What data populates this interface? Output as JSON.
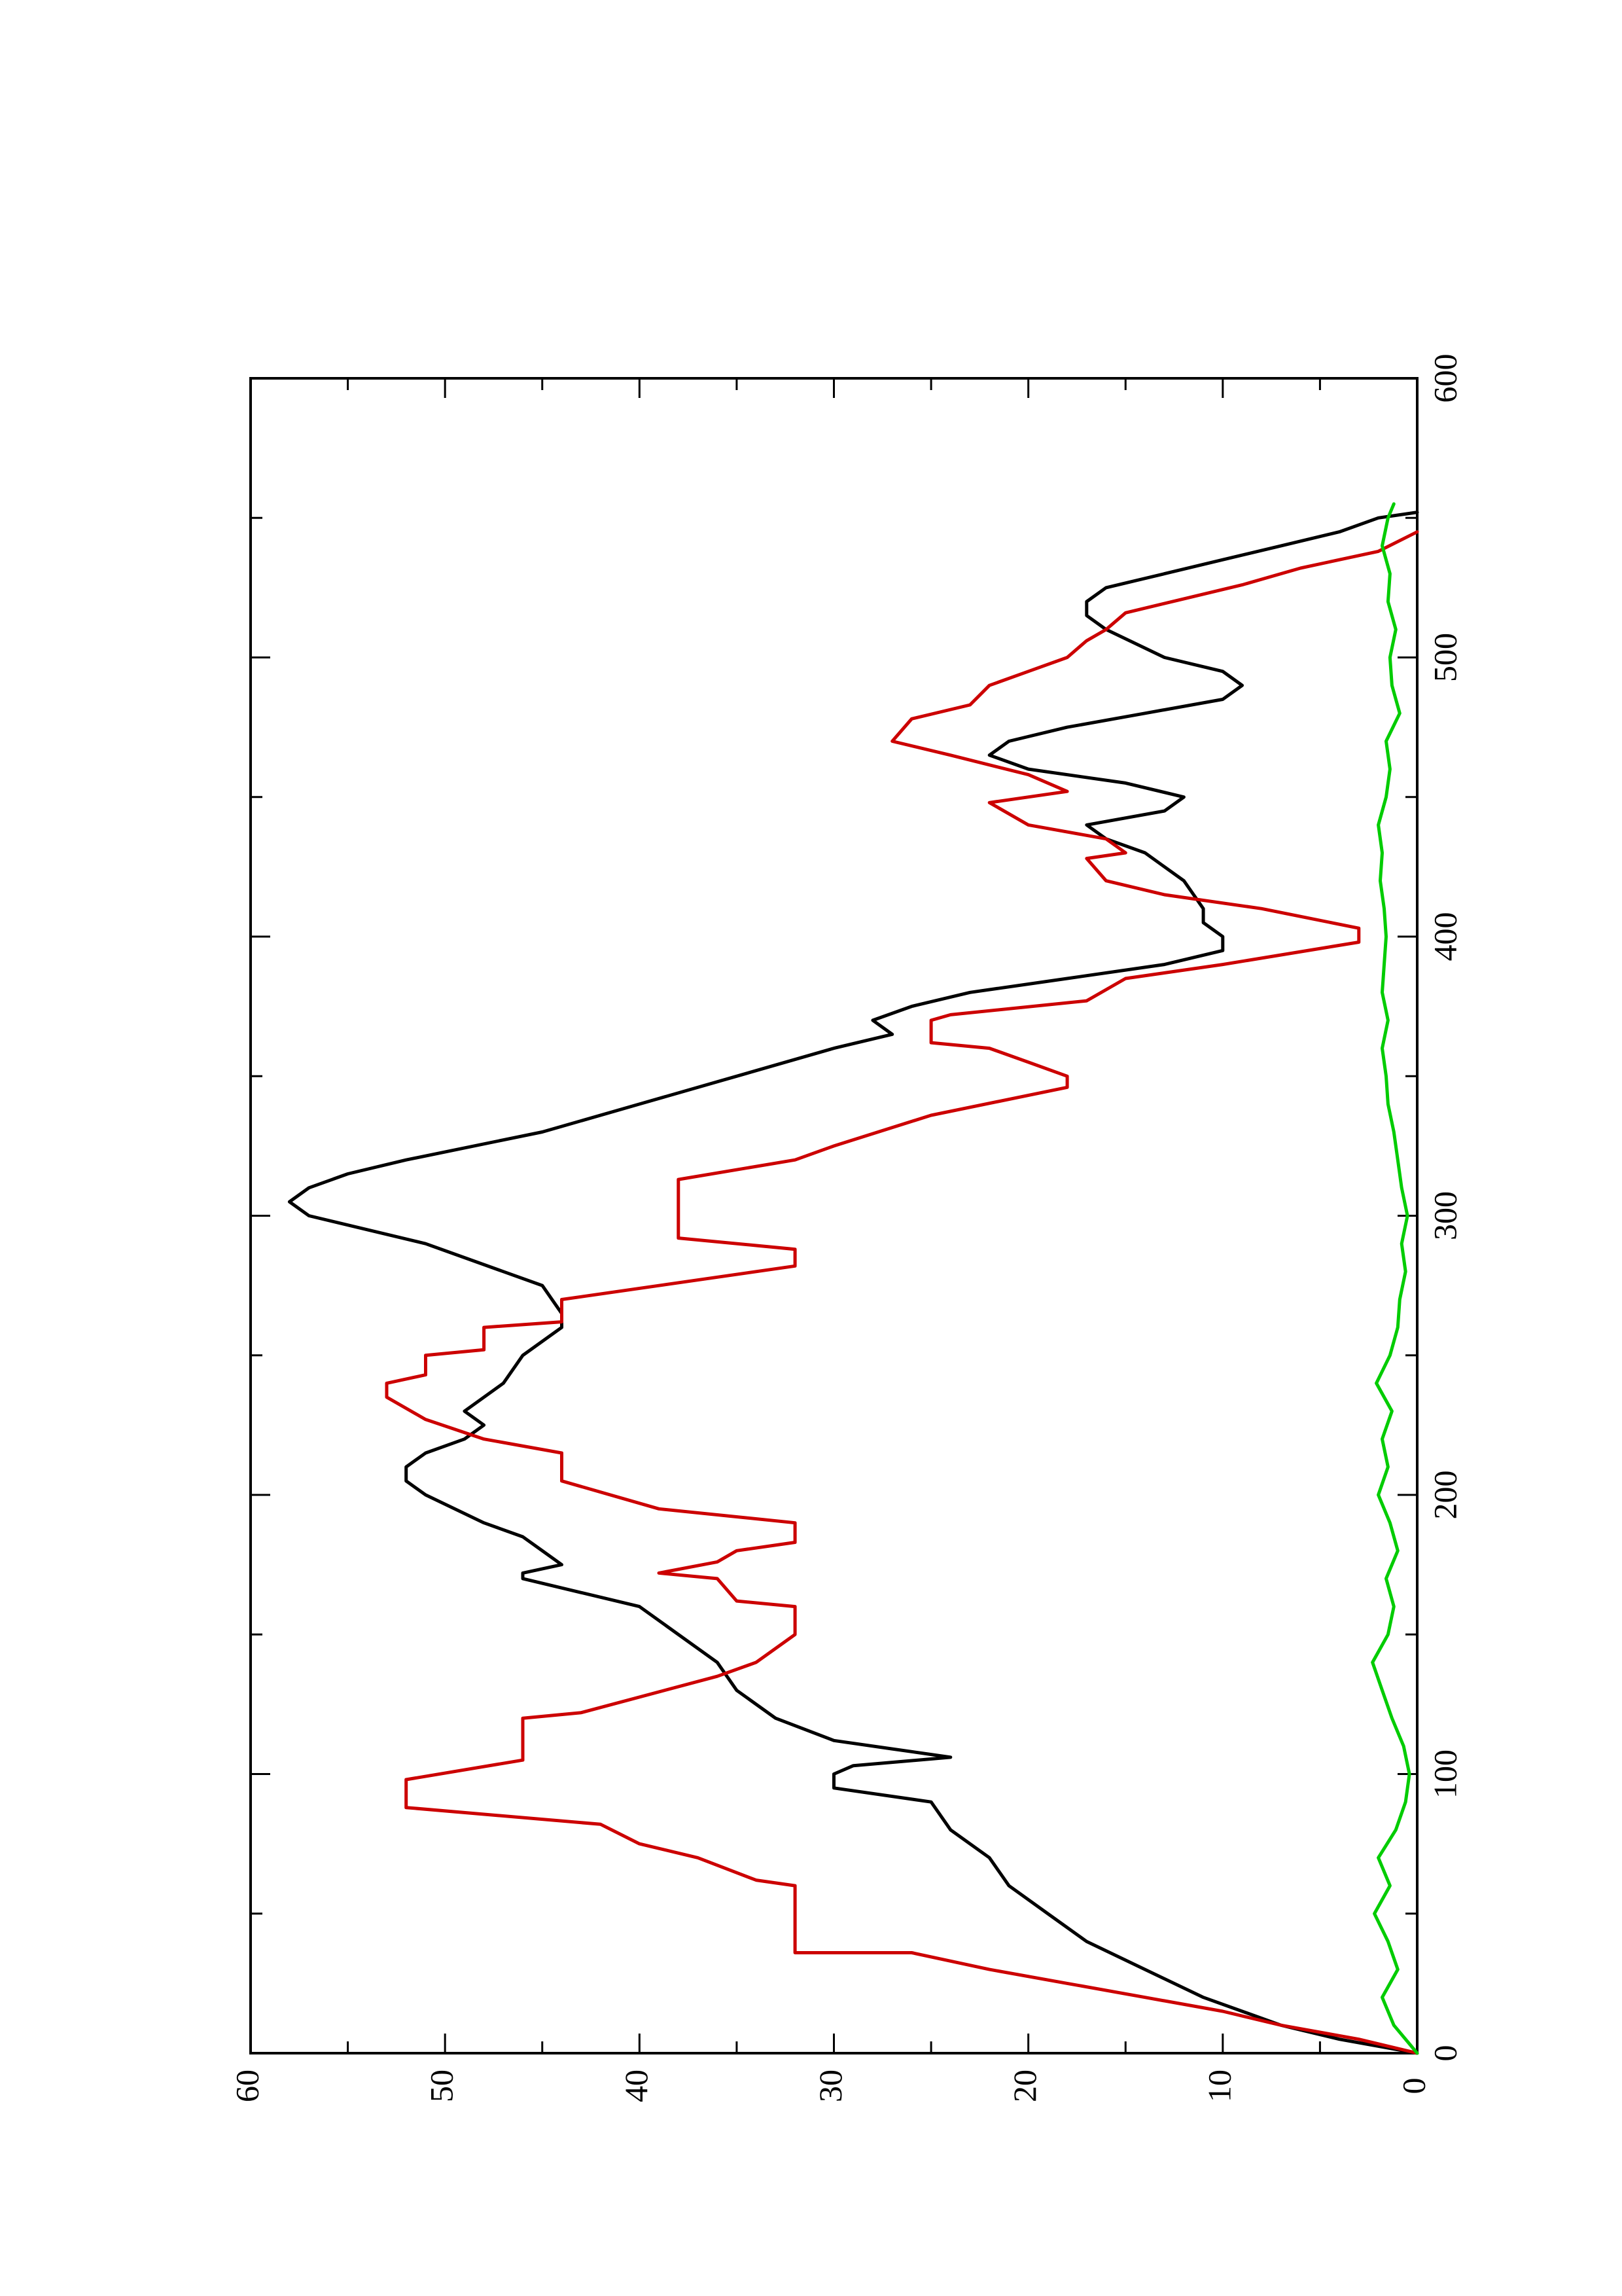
{
  "chart_data": {
    "type": "line",
    "orientation": "rotated-90-counterclockwise",
    "title": "",
    "xlabel": "",
    "ylabel": "",
    "xlim": [
      0,
      600
    ],
    "ylim": [
      0,
      60
    ],
    "x_ticks": [
      0,
      100,
      200,
      300,
      400,
      500,
      600
    ],
    "x_minor_ticks": [
      50,
      150,
      250,
      350,
      450,
      550
    ],
    "y_ticks": [
      0,
      10,
      20,
      30,
      40,
      50,
      60
    ],
    "y_minor_ticks": [
      5,
      15,
      25,
      35,
      45,
      55
    ],
    "grid": false,
    "legend": "none",
    "series": [
      {
        "color": "#000000",
        "points": [
          [
            0,
            0
          ],
          [
            5,
            4
          ],
          [
            10,
            7
          ],
          [
            15,
            9
          ],
          [
            20,
            11
          ],
          [
            30,
            14
          ],
          [
            40,
            17
          ],
          [
            50,
            19
          ],
          [
            60,
            21
          ],
          [
            70,
            22
          ],
          [
            80,
            24
          ],
          [
            90,
            25
          ],
          [
            95,
            30
          ],
          [
            100,
            30
          ],
          [
            103,
            29
          ],
          [
            106,
            24
          ],
          [
            109,
            27
          ],
          [
            112,
            30
          ],
          [
            120,
            33
          ],
          [
            130,
            35
          ],
          [
            140,
            36
          ],
          [
            150,
            38
          ],
          [
            160,
            40
          ],
          [
            165,
            43
          ],
          [
            170,
            46
          ],
          [
            172,
            46
          ],
          [
            175,
            44
          ],
          [
            180,
            45
          ],
          [
            185,
            46
          ],
          [
            190,
            48
          ],
          [
            200,
            51
          ],
          [
            205,
            52
          ],
          [
            210,
            52
          ],
          [
            215,
            51
          ],
          [
            220,
            49
          ],
          [
            225,
            48
          ],
          [
            230,
            49
          ],
          [
            240,
            47
          ],
          [
            250,
            46
          ],
          [
            260,
            44
          ],
          [
            265,
            44
          ],
          [
            275,
            45
          ],
          [
            280,
            47
          ],
          [
            290,
            51
          ],
          [
            295,
            54
          ],
          [
            300,
            57
          ],
          [
            305,
            58
          ],
          [
            310,
            57
          ],
          [
            315,
            55
          ],
          [
            320,
            52
          ],
          [
            330,
            45
          ],
          [
            340,
            40
          ],
          [
            350,
            35
          ],
          [
            360,
            30
          ],
          [
            365,
            27
          ],
          [
            370,
            28
          ],
          [
            375,
            26
          ],
          [
            380,
            23
          ],
          [
            385,
            18
          ],
          [
            390,
            13
          ],
          [
            395,
            10
          ],
          [
            400,
            10
          ],
          [
            405,
            11
          ],
          [
            410,
            11
          ],
          [
            420,
            12
          ],
          [
            425,
            13
          ],
          [
            430,
            14
          ],
          [
            435,
            16
          ],
          [
            440,
            17
          ],
          [
            445,
            13
          ],
          [
            450,
            12
          ],
          [
            455,
            15
          ],
          [
            460,
            20
          ],
          [
            465,
            22
          ],
          [
            470,
            21
          ],
          [
            475,
            18
          ],
          [
            480,
            14
          ],
          [
            485,
            10
          ],
          [
            490,
            9
          ],
          [
            495,
            10
          ],
          [
            500,
            13
          ],
          [
            510,
            16
          ],
          [
            515,
            17
          ],
          [
            520,
            17
          ],
          [
            525,
            16
          ],
          [
            530,
            13
          ],
          [
            535,
            10
          ],
          [
            540,
            7
          ],
          [
            545,
            4
          ],
          [
            550,
            2
          ],
          [
            552,
            0
          ]
        ]
      },
      {
        "color": "#cc0000",
        "points": [
          [
            0,
            0
          ],
          [
            5,
            3
          ],
          [
            10,
            7
          ],
          [
            15,
            10
          ],
          [
            20,
            14
          ],
          [
            25,
            18
          ],
          [
            30,
            22
          ],
          [
            36,
            26
          ],
          [
            36,
            32
          ],
          [
            60,
            32
          ],
          [
            62,
            34
          ],
          [
            70,
            37
          ],
          [
            75,
            40
          ],
          [
            82,
            42
          ],
          [
            88,
            52
          ],
          [
            98,
            52
          ],
          [
            105,
            46
          ],
          [
            120,
            46
          ],
          [
            122,
            43
          ],
          [
            135,
            36
          ],
          [
            140,
            34
          ],
          [
            150,
            32
          ],
          [
            160,
            32
          ],
          [
            162,
            35
          ],
          [
            170,
            36
          ],
          [
            172,
            39
          ],
          [
            176,
            36
          ],
          [
            180,
            35
          ],
          [
            183,
            32
          ],
          [
            190,
            32
          ],
          [
            195,
            39
          ],
          [
            205,
            44
          ],
          [
            215,
            44
          ],
          [
            220,
            48
          ],
          [
            227,
            51
          ],
          [
            235,
            53
          ],
          [
            240,
            53
          ],
          [
            243,
            51
          ],
          [
            250,
            51
          ],
          [
            252,
            48
          ],
          [
            260,
            48
          ],
          [
            262,
            44
          ],
          [
            270,
            44
          ],
          [
            282,
            32
          ],
          [
            288,
            32
          ],
          [
            292,
            38
          ],
          [
            313,
            38
          ],
          [
            320,
            32
          ],
          [
            325,
            30
          ],
          [
            336,
            25
          ],
          [
            346,
            18
          ],
          [
            350,
            18
          ],
          [
            355,
            20
          ],
          [
            360,
            22
          ],
          [
            362,
            25
          ],
          [
            370,
            25
          ],
          [
            372,
            24
          ],
          [
            377,
            17
          ],
          [
            385,
            15
          ],
          [
            390,
            10
          ],
          [
            398,
            3
          ],
          [
            403,
            3
          ],
          [
            410,
            8
          ],
          [
            415,
            13
          ],
          [
            420,
            16
          ],
          [
            428,
            17
          ],
          [
            430,
            15
          ],
          [
            435,
            16
          ],
          [
            440,
            20
          ],
          [
            448,
            22
          ],
          [
            452,
            18
          ],
          [
            458,
            20
          ],
          [
            465,
            24
          ],
          [
            470,
            27
          ],
          [
            478,
            26
          ],
          [
            483,
            23
          ],
          [
            490,
            22
          ],
          [
            495,
            20
          ],
          [
            500,
            18
          ],
          [
            506,
            17
          ],
          [
            510,
            16
          ],
          [
            516,
            15
          ],
          [
            521,
            12
          ],
          [
            526,
            9
          ],
          [
            532,
            6
          ],
          [
            538,
            2
          ],
          [
            545,
            0
          ]
        ]
      },
      {
        "color": "#00cc00",
        "points": [
          [
            0,
            0
          ],
          [
            10,
            1.2
          ],
          [
            20,
            1.8
          ],
          [
            30,
            1.0
          ],
          [
            40,
            1.5
          ],
          [
            50,
            2.2
          ],
          [
            60,
            1.4
          ],
          [
            70,
            2.0
          ],
          [
            80,
            1.1
          ],
          [
            90,
            0.6
          ],
          [
            100,
            0.4
          ],
          [
            110,
            0.7
          ],
          [
            120,
            1.3
          ],
          [
            130,
            1.8
          ],
          [
            140,
            2.3
          ],
          [
            150,
            1.5
          ],
          [
            160,
            1.2
          ],
          [
            170,
            1.6
          ],
          [
            180,
            1.0
          ],
          [
            190,
            1.4
          ],
          [
            200,
            2.0
          ],
          [
            210,
            1.5
          ],
          [
            220,
            1.8
          ],
          [
            230,
            1.3
          ],
          [
            240,
            2.1
          ],
          [
            250,
            1.4
          ],
          [
            260,
            1.0
          ],
          [
            270,
            0.9
          ],
          [
            280,
            0.6
          ],
          [
            290,
            0.8
          ],
          [
            300,
            0.5
          ],
          [
            310,
            0.8
          ],
          [
            320,
            1.0
          ],
          [
            330,
            1.2
          ],
          [
            340,
            1.5
          ],
          [
            350,
            1.6
          ],
          [
            360,
            1.8
          ],
          [
            370,
            1.5
          ],
          [
            380,
            1.8
          ],
          [
            390,
            1.7
          ],
          [
            400,
            1.6
          ],
          [
            410,
            1.7
          ],
          [
            420,
            1.9
          ],
          [
            430,
            1.8
          ],
          [
            440,
            2.0
          ],
          [
            450,
            1.6
          ],
          [
            460,
            1.4
          ],
          [
            470,
            1.6
          ],
          [
            480,
            0.9
          ],
          [
            490,
            1.3
          ],
          [
            500,
            1.4
          ],
          [
            510,
            1.1
          ],
          [
            520,
            1.5
          ],
          [
            530,
            1.4
          ],
          [
            540,
            1.8
          ],
          [
            550,
            1.5
          ],
          [
            555,
            1.2
          ]
        ]
      }
    ]
  }
}
